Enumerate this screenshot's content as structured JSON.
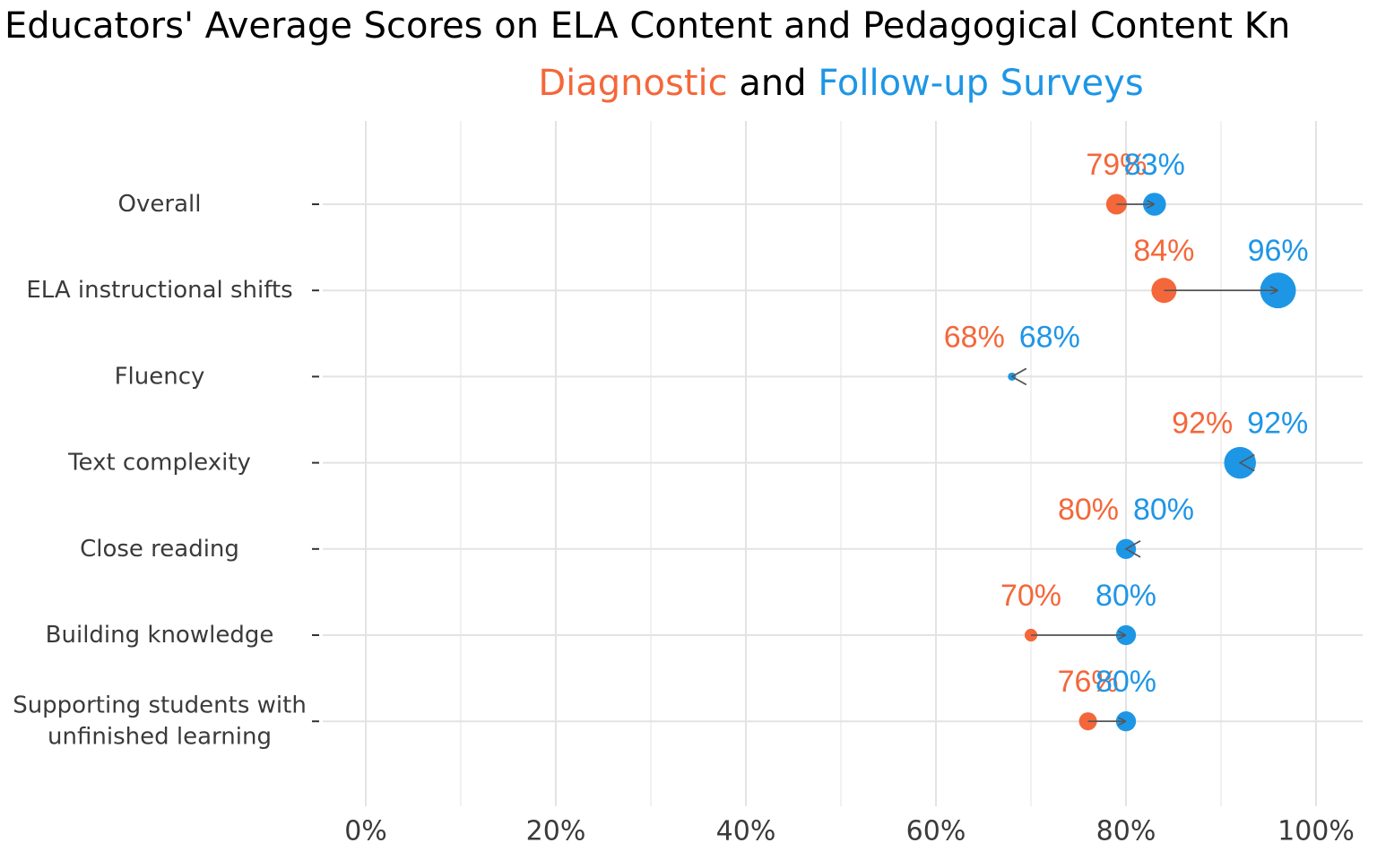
{
  "title": {
    "line1": "Educators' Average Scores on ELA Content and Pedagogical Content Kn",
    "line2": {
      "diagnostic_word": "Diagnostic",
      "connector": " and ",
      "followup_word": "Follow-up Surveys"
    }
  },
  "colors": {
    "diagnostic": "#f4673a",
    "followup": "#1e96e6",
    "arrow": "#555555",
    "grid": "#e3e3e3",
    "axis_text": "#3a3a3a"
  },
  "chart_data": {
    "type": "dumbbell",
    "xlim": [
      0,
      100
    ],
    "x_ticks": [
      0,
      20,
      40,
      60,
      80,
      100
    ],
    "x_tick_labels": [
      "0%",
      "20%",
      "40%",
      "60%",
      "80%",
      "100%"
    ],
    "grid": true,
    "categories": [
      {
        "label_lines": [
          "Overall"
        ],
        "diagnostic": 79,
        "followup": 83
      },
      {
        "label_lines": [
          "ELA instructional shifts"
        ],
        "diagnostic": 84,
        "followup": 96
      },
      {
        "label_lines": [
          "Fluency"
        ],
        "diagnostic": 68,
        "followup": 68
      },
      {
        "label_lines": [
          "Text complexity"
        ],
        "diagnostic": 92,
        "followup": 92
      },
      {
        "label_lines": [
          "Close reading"
        ],
        "diagnostic": 80,
        "followup": 80
      },
      {
        "label_lines": [
          "Building knowledge"
        ],
        "diagnostic": 70,
        "followup": 80
      },
      {
        "label_lines": [
          "Supporting students with",
          "unfinished learning"
        ],
        "diagnostic": 76,
        "followup": 80
      }
    ],
    "series": [
      {
        "name": "Diagnostic",
        "key": "diagnostic"
      },
      {
        "name": "Follow-up Surveys",
        "key": "followup"
      }
    ]
  }
}
